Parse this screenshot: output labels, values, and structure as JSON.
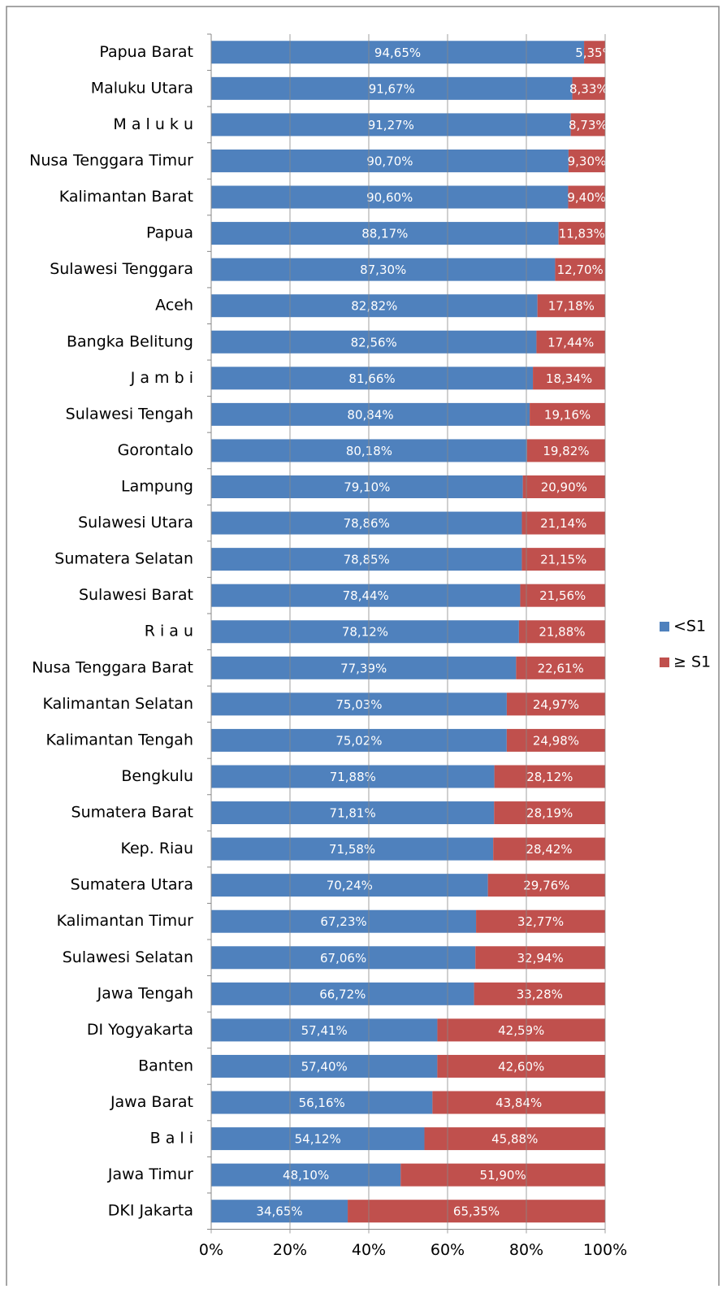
{
  "chart_data": {
    "type": "stacked_barh",
    "categories": [
      "Papua Barat",
      "Maluku Utara",
      "M a l u k u",
      "Nusa Tenggara Timur",
      "Kalimantan Barat",
      "Papua",
      "Sulawesi Tenggara",
      "Aceh",
      "Bangka Belitung",
      "J a m b i",
      "Sulawesi Tengah",
      "Gorontalo",
      "Lampung",
      "Sulawesi Utara",
      "Sumatera Selatan",
      "Sulawesi Barat",
      "R i a u",
      "Nusa Tenggara Barat",
      "Kalimantan Selatan",
      "Kalimantan Tengah",
      "Bengkulu",
      "Sumatera Barat",
      "Kep. Riau",
      "Sumatera Utara",
      "Kalimantan Timur",
      "Sulawesi Selatan",
      "Jawa Tengah",
      "DI Yogyakarta",
      "Banten",
      "Jawa Barat",
      "B a l i",
      "Jawa Timur",
      "DKI Jakarta"
    ],
    "series": [
      {
        "name": "<S1",
        "color": "#4f81bd",
        "values": [
          94.65,
          91.67,
          91.27,
          90.7,
          90.6,
          88.17,
          87.3,
          82.82,
          82.56,
          81.66,
          80.84,
          80.18,
          79.1,
          78.86,
          78.85,
          78.44,
          78.12,
          77.39,
          75.03,
          75.02,
          71.88,
          71.81,
          71.58,
          70.24,
          67.23,
          67.06,
          66.72,
          57.41,
          57.4,
          56.16,
          54.12,
          48.1,
          34.65
        ],
        "value_labels": [
          "94,65%",
          "91,67%",
          "91,27%",
          "90,70%",
          "90,60%",
          "88,17%",
          "87,30%",
          "82,82%",
          "82,56%",
          "81,66%",
          "80,84%",
          "80,18%",
          "79,10%",
          "78,86%",
          "78,85%",
          "78,44%",
          "78,12%",
          "77,39%",
          "75,03%",
          "75,02%",
          "71,88%",
          "71,81%",
          "71,58%",
          "70,24%",
          "67,23%",
          "67,06%",
          "66,72%",
          "57,41%",
          "57,40%",
          "56,16%",
          "54,12%",
          "48,10%",
          "34,65%"
        ]
      },
      {
        "name": "≥ S1",
        "color": "#c0504d",
        "values": [
          5.35,
          8.33,
          8.73,
          9.3,
          9.4,
          11.83,
          12.7,
          17.18,
          17.44,
          18.34,
          19.16,
          19.82,
          20.9,
          21.14,
          21.15,
          21.56,
          21.88,
          22.61,
          24.97,
          24.98,
          28.12,
          28.19,
          28.42,
          29.76,
          32.77,
          32.94,
          33.28,
          42.59,
          42.6,
          43.84,
          45.88,
          51.9,
          65.35
        ],
        "value_labels": [
          "5,35%",
          "8,33%",
          "8,73%",
          "9,30%",
          "9,40%",
          "11,83%",
          "12,70%",
          "17,18%",
          "17,44%",
          "18,34%",
          "19,16%",
          "19,82%",
          "20,90%",
          "21,14%",
          "21,15%",
          "21,56%",
          "21,88%",
          "22,61%",
          "24,97%",
          "24,98%",
          "28,12%",
          "28,19%",
          "28,42%",
          "29,76%",
          "32,77%",
          "32,94%",
          "33,28%",
          "42,59%",
          "42,60%",
          "43,84%",
          "45,88%",
          "51,90%",
          "65,35%"
        ]
      }
    ],
    "xlim": [
      0,
      100
    ],
    "xticks": [
      {
        "value": 0,
        "label": "0%"
      },
      {
        "value": 20,
        "label": "20%"
      },
      {
        "value": 40,
        "label": "40%"
      },
      {
        "value": 60,
        "label": "60%"
      },
      {
        "value": 80,
        "label": "80%"
      },
      {
        "value": 100,
        "label": "100%"
      }
    ],
    "legend": "right"
  }
}
